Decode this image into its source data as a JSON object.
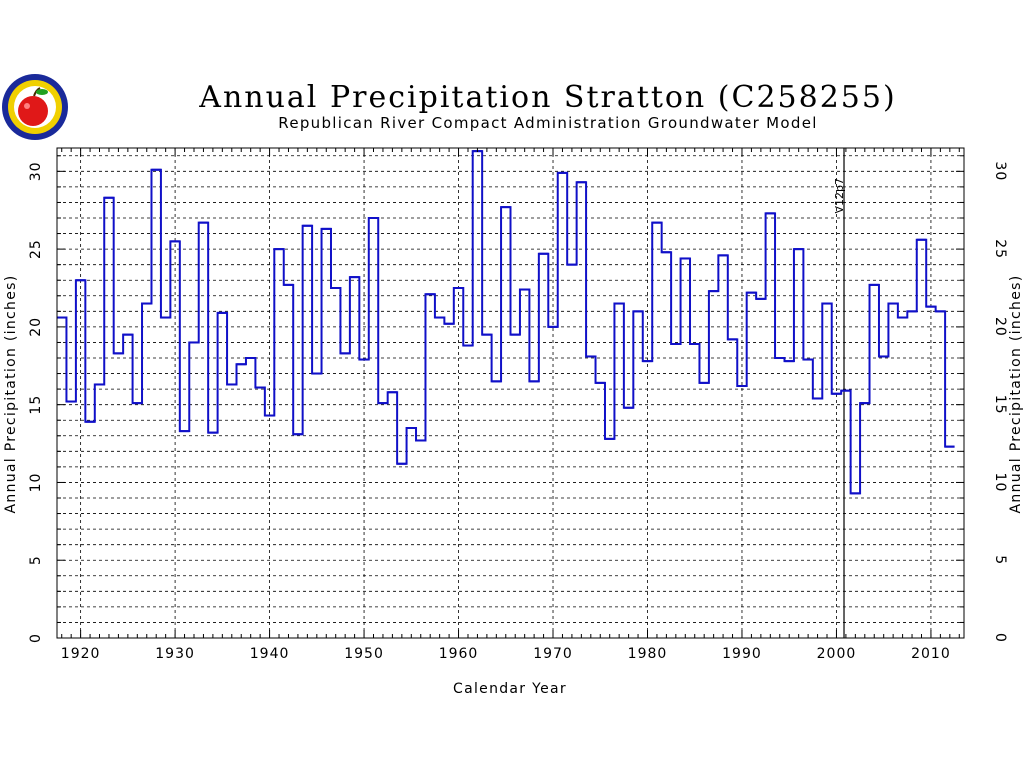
{
  "chart_data": {
    "type": "line",
    "title": "Annual Precipitation Stratton (C258255)",
    "subtitle": "Republican River Compact Administration Groundwater Model",
    "xlabel": "Calendar Year",
    "ylabel": "Annual Precipitation (inches)",
    "ylabel_right": "Annual Precipitation (inches)",
    "xlim": [
      1917.5,
      2013.5
    ],
    "ylim": [
      0,
      31.5
    ],
    "x_ticks": [
      1920,
      1930,
      1940,
      1950,
      1960,
      1970,
      1980,
      1990,
      2000,
      2010
    ],
    "y_ticks": [
      0,
      5,
      10,
      15,
      20,
      25,
      30
    ],
    "grid": true,
    "line_color": "#1010c8",
    "annotation": {
      "label": "V12p7",
      "x": 2000.8
    },
    "series": [
      {
        "x": [
          1918,
          1919,
          1920,
          1921,
          1922,
          1923,
          1924,
          1925,
          1926,
          1927,
          1928,
          1929,
          1930,
          1931,
          1932,
          1933,
          1934,
          1935,
          1936,
          1937,
          1938,
          1939,
          1940,
          1941,
          1942,
          1943,
          1944,
          1945,
          1946,
          1947,
          1948,
          1949,
          1950,
          1951,
          1952,
          1953,
          1954,
          1955,
          1956,
          1957,
          1958,
          1959,
          1960,
          1961,
          1962,
          1963,
          1964,
          1965,
          1966,
          1967,
          1968,
          1969,
          1970,
          1971,
          1972,
          1973,
          1974,
          1975,
          1976,
          1977,
          1978,
          1979,
          1980,
          1981,
          1982,
          1983,
          1984,
          1985,
          1986,
          1987,
          1988,
          1989,
          1990,
          1991,
          1992,
          1993,
          1994,
          1995,
          1996,
          1997,
          1998,
          1999,
          2000,
          2001,
          2002,
          2003,
          2004,
          2005,
          2006,
          2007,
          2008,
          2009,
          2010,
          2011,
          2012
        ],
        "values": [
          20.6,
          15.2,
          23.0,
          13.9,
          16.3,
          28.3,
          18.3,
          19.5,
          15.1,
          21.5,
          30.1,
          20.6,
          25.5,
          13.3,
          19.0,
          26.7,
          13.2,
          20.9,
          16.3,
          17.6,
          18.0,
          16.1,
          14.3,
          25.0,
          22.7,
          13.1,
          26.5,
          17.0,
          26.3,
          22.5,
          18.3,
          23.2,
          17.9,
          27.0,
          15.1,
          15.8,
          11.2,
          13.5,
          12.7,
          22.1,
          20.6,
          20.2,
          22.5,
          18.8,
          31.3,
          19.5,
          16.5,
          27.7,
          19.5,
          22.4,
          16.5,
          24.7,
          20.0,
          29.9,
          24.0,
          29.3,
          18.1,
          16.4,
          12.8,
          21.5,
          14.8,
          21.0,
          17.8,
          26.7,
          24.8,
          18.9,
          24.4,
          18.9,
          16.4,
          22.3,
          24.6,
          19.2,
          16.2,
          22.2,
          21.8,
          27.3,
          18.0,
          17.8,
          25.0,
          17.9,
          15.4,
          21.5,
          15.7,
          15.9,
          9.3,
          15.1,
          22.7,
          18.1,
          21.5,
          20.6,
          21.0,
          25.6,
          21.3,
          21.0,
          12.3
        ]
      }
    ]
  }
}
